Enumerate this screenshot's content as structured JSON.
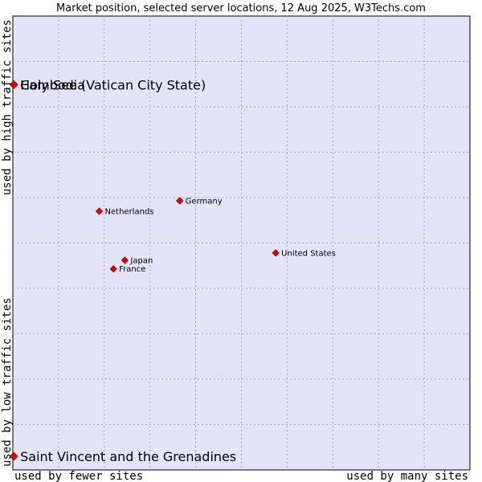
{
  "chart_data": {
    "type": "scatter",
    "title": "Market position, selected server locations, 12 Aug 2025, W3Techs.com",
    "xlabel_left": "used by fewer sites",
    "xlabel_right": "used by many sites",
    "ylabel_bottom": "used by low traffic sites",
    "ylabel_top": "used by high traffic sites",
    "xlim": [
      0,
      100
    ],
    "ylim": [
      0,
      100
    ],
    "grid": true,
    "points": [
      {
        "label": "Holy See (Vatican City State)",
        "x": 0.2,
        "y": 84.9,
        "size": "large"
      },
      {
        "label": "Cambodia",
        "x": 0.2,
        "y": 84.9,
        "size": "large"
      },
      {
        "label": "Saint Vincent and the Grenadines",
        "x": 0.2,
        "y": 3.0,
        "size": "large"
      },
      {
        "label": "Germany",
        "x": 36.5,
        "y": 59.3,
        "size": "small"
      },
      {
        "label": "Netherlands",
        "x": 18.9,
        "y": 57.0,
        "size": "small"
      },
      {
        "label": "United States",
        "x": 57.5,
        "y": 47.8,
        "size": "small"
      },
      {
        "label": "Japan",
        "x": 24.5,
        "y": 46.2,
        "size": "small"
      },
      {
        "label": "France",
        "x": 22.0,
        "y": 44.3,
        "size": "small"
      }
    ]
  }
}
